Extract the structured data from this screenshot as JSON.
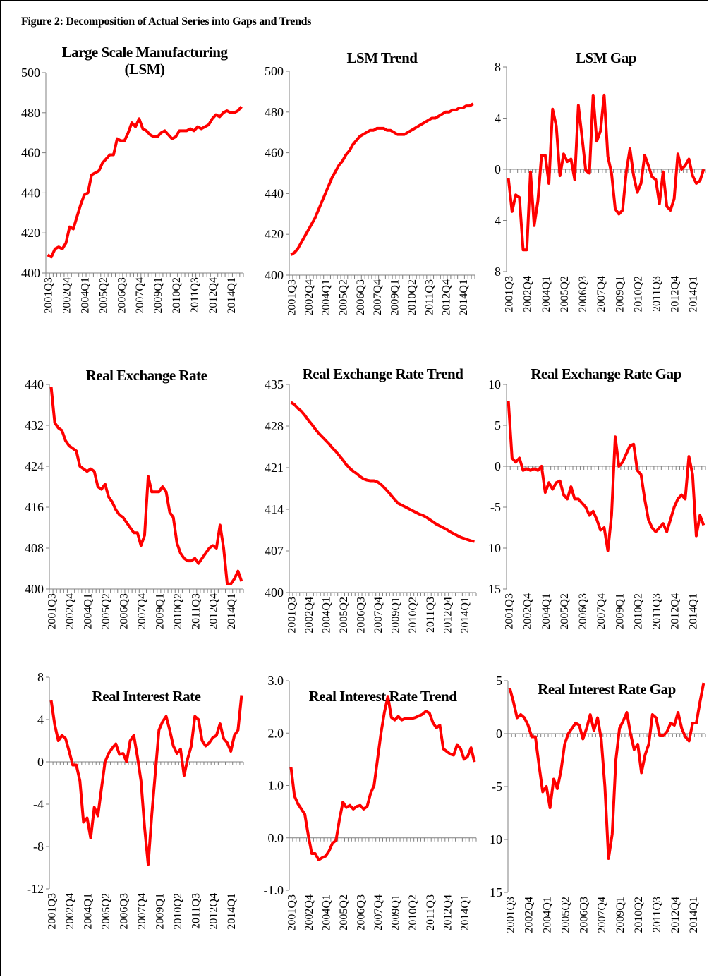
{
  "figure_title": "Figure 2: Decomposition of Actual Series into Gaps and Trends",
  "chart_data": [
    {
      "type": "line",
      "title": "Large Scale Manufacturing (LSM)",
      "categories": [
        "2001Q3",
        null,
        null,
        null,
        null,
        "2002Q4",
        null,
        null,
        null,
        null,
        "2004Q1",
        null,
        null,
        null,
        null,
        "2005Q2",
        null,
        null,
        null,
        null,
        "2006Q3",
        null,
        null,
        null,
        null,
        "2007Q4",
        null,
        null,
        null,
        null,
        "2009Q1",
        null,
        null,
        null,
        null,
        "2010Q2",
        null,
        null,
        null,
        null,
        "2011Q3",
        null,
        null,
        null,
        null,
        "2012Q4",
        null,
        null,
        null,
        null,
        "2014Q1",
        null,
        null,
        null
      ],
      "values": [
        409,
        408,
        412,
        413,
        412,
        415,
        423,
        422,
        428,
        434,
        439,
        440,
        449,
        450,
        451,
        455,
        457,
        459,
        459,
        467,
        466,
        466,
        470,
        475,
        473,
        477,
        472,
        471,
        469,
        468,
        468,
        470,
        471,
        469,
        467,
        468,
        471,
        471,
        471,
        472,
        471,
        473,
        472,
        473,
        474,
        477,
        479,
        478,
        480,
        481,
        480,
        480,
        481,
        483
      ],
      "color": "#ff0000",
      "ylim": [
        400,
        500
      ],
      "yticks": [
        400,
        420,
        440,
        460,
        480,
        500
      ]
    },
    {
      "type": "line",
      "title": "LSM Trend",
      "categories": [
        "2001Q3",
        null,
        null,
        null,
        null,
        "2002Q4",
        null,
        null,
        null,
        null,
        "2004Q1",
        null,
        null,
        null,
        null,
        "2005Q2",
        null,
        null,
        null,
        null,
        "2006Q3",
        null,
        null,
        null,
        null,
        "2007Q4",
        null,
        null,
        null,
        null,
        "2009Q1",
        null,
        null,
        null,
        null,
        "2010Q2",
        null,
        null,
        null,
        null,
        "2011Q3",
        null,
        null,
        null,
        null,
        "2012Q4",
        null,
        null,
        null,
        null,
        "2014Q1",
        null,
        null,
        null
      ],
      "values": [
        410,
        411,
        413,
        416,
        419,
        422,
        425,
        428,
        432,
        436,
        440,
        444,
        448,
        451,
        454,
        456,
        459,
        461,
        464,
        466,
        468,
        469,
        470,
        471,
        471,
        472,
        472,
        472,
        471,
        471,
        470,
        469,
        469,
        469,
        470,
        471,
        472,
        473,
        474,
        475,
        476,
        477,
        477,
        478,
        479,
        480,
        480,
        481,
        481,
        482,
        482,
        483,
        483,
        484
      ],
      "color": "#ff0000",
      "ylim": [
        400,
        500
      ],
      "yticks": [
        400,
        420,
        440,
        460,
        480,
        500
      ]
    },
    {
      "type": "line",
      "title": "LSM Gap",
      "categories": [
        "2001Q3",
        null,
        null,
        null,
        null,
        "2002Q4",
        null,
        null,
        null,
        null,
        "2004Q1",
        null,
        null,
        null,
        null,
        "2005Q2",
        null,
        null,
        null,
        null,
        "2006Q3",
        null,
        null,
        null,
        null,
        "2007Q4",
        null,
        null,
        null,
        null,
        "2009Q1",
        null,
        null,
        null,
        null,
        "2010Q2",
        null,
        null,
        null,
        null,
        "2011Q3",
        null,
        null,
        null,
        null,
        "2012Q4",
        null,
        null,
        null,
        null,
        "2014Q1",
        null,
        null,
        null
      ],
      "values": [
        -0.7,
        -3.3,
        -2.0,
        -2.2,
        -6.3,
        -6.3,
        -0.2,
        -4.4,
        -2.5,
        1.1,
        1.1,
        -1.1,
        4.7,
        3.4,
        -0.5,
        1.2,
        0.6,
        0.8,
        -0.8,
        5.0,
        2.5,
        -0.1,
        -0.3,
        5.8,
        2.2,
        3.0,
        5.8,
        1.0,
        -0.3,
        -3.1,
        -3.5,
        -3.2,
        -0.2,
        1.6,
        -0.5,
        -1.8,
        -1.1,
        1.1,
        0.3,
        -0.6,
        -0.8,
        -2.7,
        -0.2,
        -2.9,
        -3.2,
        -2.3,
        1.2,
        0.0,
        0.3,
        0.8,
        -0.5,
        -1.1,
        -0.9,
        0.0
      ],
      "color": "#ff0000",
      "ylim": [
        -8,
        8
      ],
      "yticks": [
        {
          "value": -8,
          "label": "8"
        },
        {
          "value": -4,
          "label": "4"
        },
        0,
        4,
        8
      ]
    },
    {
      "type": "line",
      "title": "Real Exchange Rate",
      "categories": [
        "2001Q3",
        null,
        null,
        null,
        null,
        "2002Q4",
        null,
        null,
        null,
        null,
        "2004Q1",
        null,
        null,
        null,
        null,
        "2005Q2",
        null,
        null,
        null,
        null,
        "2006Q3",
        null,
        null,
        null,
        null,
        "2007Q4",
        null,
        null,
        null,
        null,
        "2009Q1",
        null,
        null,
        null,
        null,
        "2010Q2",
        null,
        null,
        null,
        null,
        "2011Q3",
        null,
        null,
        null,
        null,
        "2012Q4",
        null,
        null,
        null,
        null,
        "2014Q1",
        null,
        null,
        null
      ],
      "values": [
        439.5,
        432.5,
        431.5,
        431,
        429,
        428,
        427.5,
        427,
        424,
        423.5,
        423,
        423.5,
        423,
        420,
        419.5,
        420.5,
        418,
        417,
        415.5,
        414.5,
        414,
        413,
        412,
        411,
        411,
        408.5,
        410.5,
        422,
        419,
        419,
        419,
        420,
        419,
        415,
        414,
        409,
        407,
        406,
        405.5,
        405.5,
        406,
        405,
        406,
        407,
        408,
        408.5,
        408,
        412.5,
        408,
        401,
        401,
        402,
        403.5,
        401.5
      ],
      "color": "#ff0000",
      "ylim": [
        400,
        440
      ],
      "yticks": [
        400,
        408,
        416,
        424,
        432,
        440
      ]
    },
    {
      "type": "line",
      "title": "Real Exchange Rate Trend",
      "categories": [
        "2001Q3",
        null,
        null,
        null,
        null,
        "2002Q4",
        null,
        null,
        null,
        null,
        "2004Q1",
        null,
        null,
        null,
        null,
        "2005Q2",
        null,
        null,
        null,
        null,
        "2006Q3",
        null,
        null,
        null,
        null,
        "2007Q4",
        null,
        null,
        null,
        null,
        "2009Q1",
        null,
        null,
        null,
        null,
        "2010Q2",
        null,
        null,
        null,
        null,
        "2011Q3",
        null,
        null,
        null,
        null,
        "2012Q4",
        null,
        null,
        null,
        null,
        "2014Q1",
        null,
        null,
        null
      ],
      "values": [
        432,
        431.6,
        431,
        430.5,
        429.8,
        429,
        428.3,
        427.5,
        426.8,
        426.2,
        425.6,
        425,
        424.3,
        423.7,
        423,
        422.3,
        421.5,
        420.9,
        420.4,
        420,
        419.5,
        419.1,
        418.9,
        418.8,
        418.8,
        418.6,
        418.2,
        417.6,
        417,
        416.3,
        415.6,
        415,
        414.7,
        414.4,
        414.1,
        413.8,
        413.5,
        413.2,
        413,
        412.7,
        412.3,
        411.9,
        411.5,
        411.2,
        410.9,
        410.6,
        410.2,
        409.9,
        409.6,
        409.3,
        409.1,
        408.9,
        408.7,
        408.6
      ],
      "color": "#ff0000",
      "ylim": [
        400,
        435
      ],
      "yticks": [
        400,
        407,
        414,
        421,
        428,
        435
      ]
    },
    {
      "type": "line",
      "title": "Real Exchange Rate Gap",
      "categories": [
        "2001Q3",
        null,
        null,
        null,
        null,
        "2002Q4",
        null,
        null,
        null,
        null,
        "2004Q1",
        null,
        null,
        null,
        null,
        "2005Q2",
        null,
        null,
        null,
        null,
        "2006Q3",
        null,
        null,
        null,
        null,
        "2007Q4",
        null,
        null,
        null,
        null,
        "2009Q1",
        null,
        null,
        null,
        null,
        "2010Q2",
        null,
        null,
        null,
        null,
        "2011Q3",
        null,
        null,
        null,
        null,
        "2012Q4",
        null,
        null,
        null,
        null,
        "2014Q1",
        null,
        null,
        null
      ],
      "values": [
        8,
        1,
        0.5,
        1,
        -0.5,
        -0.3,
        -0.5,
        -0.3,
        -0.5,
        0,
        -3.2,
        -2,
        -2.8,
        -2,
        -1.8,
        -3.5,
        -4,
        -2.5,
        -4,
        -4,
        -4.5,
        -5,
        -6,
        -5.5,
        -6.5,
        -7.8,
        -7.5,
        -10.3,
        -6,
        3.6,
        0,
        0.5,
        1.5,
        2.5,
        2.7,
        -0.5,
        -1,
        -4,
        -6.5,
        -7.5,
        -8,
        -7.5,
        -7,
        -8,
        -6.5,
        -5,
        -4,
        -3.5,
        -4,
        1.2,
        -1,
        -8.5,
        -6,
        -7.2
      ],
      "color": "#ff0000",
      "ylim": [
        -15,
        10
      ],
      "yticks": [
        {
          "value": -15,
          "label": "15"
        },
        {
          "value": -10,
          "label": "10"
        },
        -5,
        0,
        5,
        10
      ]
    },
    {
      "type": "line",
      "title": "Real Interest Rate",
      "categories": [
        "2001Q3",
        null,
        null,
        null,
        null,
        "2002Q4",
        null,
        null,
        null,
        null,
        "2004Q1",
        null,
        null,
        null,
        null,
        "2005Q2",
        null,
        null,
        null,
        null,
        "2006Q3",
        null,
        null,
        null,
        null,
        "2007Q4",
        null,
        null,
        null,
        null,
        "2009Q1",
        null,
        null,
        null,
        null,
        "2010Q2",
        null,
        null,
        null,
        null,
        "2011Q3",
        null,
        null,
        null,
        null,
        "2012Q4",
        null,
        null,
        null,
        null,
        "2014Q1",
        null,
        null,
        null
      ],
      "values": [
        5.8,
        3.5,
        2,
        2.5,
        2.2,
        1,
        -0.3,
        -0.3,
        -1.8,
        -5.7,
        -5.3,
        -7.2,
        -4.3,
        -5.1,
        -2.5,
        0,
        0.8,
        1.3,
        1.7,
        0.7,
        0.8,
        0,
        2,
        2.5,
        0.5,
        -1.8,
        -6.2,
        -9.7,
        -5,
        -1,
        3,
        3.8,
        4.3,
        3,
        1.5,
        0.8,
        1.2,
        -1.3,
        0.3,
        1.5,
        4.3,
        4,
        2,
        1.5,
        1.8,
        2.3,
        2.5,
        3.6,
        2.2,
        1.8,
        1,
        2.5,
        3,
        6.3
      ],
      "color": "#ff0000",
      "ylim": [
        -12,
        8
      ],
      "yticks": [
        -12,
        -8,
        -4,
        0,
        4,
        8
      ]
    },
    {
      "type": "line",
      "title": "Real Interest Rate Trend",
      "categories": [
        "2001Q3",
        null,
        null,
        null,
        null,
        "2002Q4",
        null,
        null,
        null,
        null,
        "2004Q1",
        null,
        null,
        null,
        null,
        "2005Q2",
        null,
        null,
        null,
        null,
        "2006Q3",
        null,
        null,
        null,
        null,
        "2007Q4",
        null,
        null,
        null,
        null,
        "2009Q1",
        null,
        null,
        null,
        null,
        "2010Q2",
        null,
        null,
        null,
        null,
        "2011Q3",
        null,
        null,
        null,
        null,
        "2012Q4",
        null,
        null,
        null,
        null,
        "2014Q1",
        null,
        null,
        null
      ],
      "values": [
        1.35,
        0.8,
        0.65,
        0.55,
        0.45,
        0.05,
        -0.3,
        -0.3,
        -0.42,
        -0.38,
        -0.35,
        -0.25,
        -0.1,
        -0.05,
        0.35,
        0.68,
        0.58,
        0.62,
        0.55,
        0.6,
        0.62,
        0.55,
        0.6,
        0.85,
        1,
        1.5,
        2,
        2.4,
        2.7,
        2.3,
        2.25,
        2.32,
        2.25,
        2.28,
        2.28,
        2.28,
        2.3,
        2.33,
        2.36,
        2.42,
        2.38,
        2.2,
        2.1,
        2.15,
        1.7,
        1.65,
        1.6,
        1.58,
        1.78,
        1.7,
        1.5,
        1.55,
        1.72,
        1.45
      ],
      "color": "#ff0000",
      "ylim": [
        -1,
        3
      ],
      "yticks": [
        {
          "value": -1,
          "label": "-1.0"
        },
        {
          "value": 0,
          "label": "0.0"
        },
        {
          "value": 1,
          "label": "1.0"
        },
        {
          "value": 2,
          "label": "2.0"
        },
        {
          "value": 3,
          "label": "3.0"
        }
      ]
    },
    {
      "type": "line",
      "title": "Real Interest Rate Gap",
      "categories": [
        "2001Q3",
        null,
        null,
        null,
        null,
        "2002Q4",
        null,
        null,
        null,
        null,
        "2004Q1",
        null,
        null,
        null,
        null,
        "2005Q2",
        null,
        null,
        null,
        null,
        "2006Q3",
        null,
        null,
        null,
        null,
        "2007Q4",
        null,
        null,
        null,
        null,
        "2009Q1",
        null,
        null,
        null,
        null,
        "2010Q2",
        null,
        null,
        null,
        null,
        "2011Q3",
        null,
        null,
        null,
        null,
        "2012Q4",
        null,
        null,
        null,
        null,
        "2014Q1",
        null,
        null,
        null
      ],
      "values": [
        4.3,
        3,
        1.5,
        1.8,
        1.5,
        0.8,
        -0.3,
        -0.3,
        -3,
        -5.5,
        -5,
        -7,
        -4.3,
        -5.2,
        -3.5,
        -1,
        0,
        0.5,
        1,
        0.8,
        -0.5,
        0.5,
        1.8,
        0.3,
        1.5,
        -0.5,
        -5,
        -11.8,
        -9.5,
        -2.5,
        0.5,
        1.2,
        2,
        0,
        -1.5,
        -1,
        -3.7,
        -2,
        -1,
        1.8,
        1.5,
        -0.2,
        -0.2,
        0.2,
        1,
        0.8,
        2,
        0.5,
        -0.3,
        -0.7,
        1,
        1,
        3,
        4.8
      ],
      "color": "#ff0000",
      "ylim": [
        -15,
        5
      ],
      "yticks": [
        {
          "value": -15,
          "label": "15"
        },
        {
          "value": -10,
          "label": "10"
        },
        -5,
        0,
        5
      ]
    }
  ]
}
